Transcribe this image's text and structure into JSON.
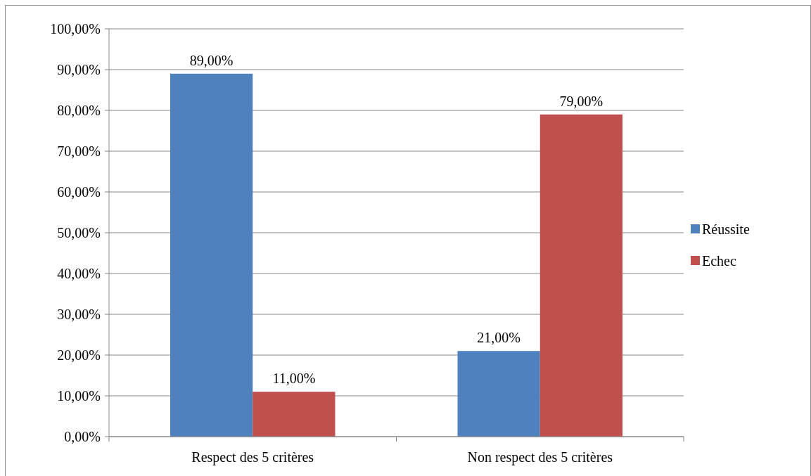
{
  "chart_data": {
    "type": "bar",
    "categories": [
      "Respect des 5 critères",
      "Non respect des 5 critères"
    ],
    "series": [
      {
        "name": "Réussite",
        "color": "#4f81bd",
        "values": [
          89,
          21
        ],
        "value_labels": [
          "89,00%",
          "21,00%"
        ]
      },
      {
        "name": "Echec",
        "color": "#c0504d",
        "values": [
          11,
          79
        ],
        "value_labels": [
          "11,00%",
          "79,00%"
        ]
      }
    ],
    "ylim": [
      0,
      100
    ],
    "yticks": [
      {
        "value": 0,
        "label": "0,00%"
      },
      {
        "value": 10,
        "label": "10,00%"
      },
      {
        "value": 20,
        "label": "20,00%"
      },
      {
        "value": 30,
        "label": "30,00%"
      },
      {
        "value": 40,
        "label": "40,00%"
      },
      {
        "value": 50,
        "label": "50,00%"
      },
      {
        "value": 60,
        "label": "60,00%"
      },
      {
        "value": 70,
        "label": "70,00%"
      },
      {
        "value": 80,
        "label": "80,00%"
      },
      {
        "value": 90,
        "label": "90,00%"
      },
      {
        "value": 100,
        "label": "100,00%"
      }
    ],
    "grid": "y",
    "legend": "right"
  }
}
